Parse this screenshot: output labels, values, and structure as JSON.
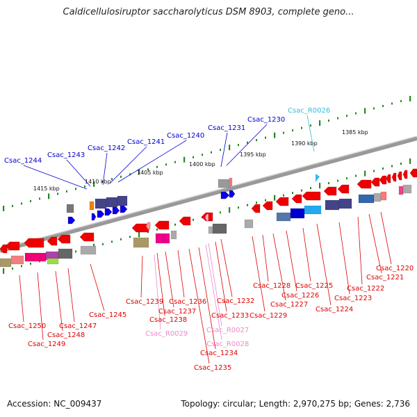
{
  "title": "Caldicellulosiruptor saccharolyticus DSM 8903, complete geno...",
  "footer": {
    "accession": "Accession: NC_009437",
    "summary": "Topology: circular; Length: 2,970,275 bp; Genes: 2,736"
  },
  "colors": {
    "forward_gene": "#0000ff",
    "reverse_gene": "#ff0000",
    "rna_label": "#33bbee",
    "pseudo_label": "#ee88cc",
    "backbone": "#888888",
    "tick_dots": "#228822"
  },
  "scale_labels": [
    "1385 kbp",
    "1390 kbp",
    "1395 kbp",
    "1400 kbp",
    "1405 kbp",
    "1410 kbp",
    "1415 kbp"
  ],
  "genes_top": [
    {
      "label": "Csac_1244",
      "color": "#0000cc"
    },
    {
      "label": "Csac_1243",
      "color": "#0000cc"
    },
    {
      "label": "Csac_1242",
      "color": "#0000cc"
    },
    {
      "label": "Csac_1241",
      "color": "#0000cc"
    },
    {
      "label": "Csac_1240",
      "color": "#0000cc"
    },
    {
      "label": "Csac_1231",
      "color": "#0000cc"
    },
    {
      "label": "Csac_1230",
      "color": "#0000cc"
    },
    {
      "label": "Csac_R0026",
      "color": "#33bbdd"
    }
  ],
  "genes_bottom": [
    {
      "label": "Csac_1220",
      "color": "#dd0000"
    },
    {
      "label": "Csac_1221",
      "color": "#dd0000"
    },
    {
      "label": "Csac_1222",
      "color": "#dd0000"
    },
    {
      "label": "Csac_1223",
      "color": "#dd0000"
    },
    {
      "label": "Csac_1224",
      "color": "#dd0000"
    },
    {
      "label": "Csac_1225",
      "color": "#dd0000"
    },
    {
      "label": "Csac_1226",
      "color": "#dd0000"
    },
    {
      "label": "Csac_1227",
      "color": "#dd0000"
    },
    {
      "label": "Csac_1228",
      "color": "#dd0000"
    },
    {
      "label": "Csac_1229",
      "color": "#dd0000"
    },
    {
      "label": "Csac_1232",
      "color": "#dd0000"
    },
    {
      "label": "Csac_1233",
      "color": "#dd0000"
    },
    {
      "label": "Csac_R0027",
      "color": "#ee88cc"
    },
    {
      "label": "Csac_R0028",
      "color": "#ee88cc"
    },
    {
      "label": "Csac_1234",
      "color": "#dd0000"
    },
    {
      "label": "Csac_1235",
      "color": "#dd0000"
    },
    {
      "label": "Csac_1236",
      "color": "#dd0000"
    },
    {
      "label": "Csac_1237",
      "color": "#dd0000"
    },
    {
      "label": "Csac_1238",
      "color": "#dd0000"
    },
    {
      "label": "Csac_R0029",
      "color": "#ee88cc"
    },
    {
      "label": "Csac_1239",
      "color": "#dd0000"
    },
    {
      "label": "Csac_1245",
      "color": "#dd0000"
    },
    {
      "label": "Csac_1247",
      "color": "#dd0000"
    },
    {
      "label": "Csac_1248",
      "color": "#dd0000"
    },
    {
      "label": "Csac_1249",
      "color": "#dd0000"
    },
    {
      "label": "Csac_1250",
      "color": "#dd0000"
    }
  ]
}
